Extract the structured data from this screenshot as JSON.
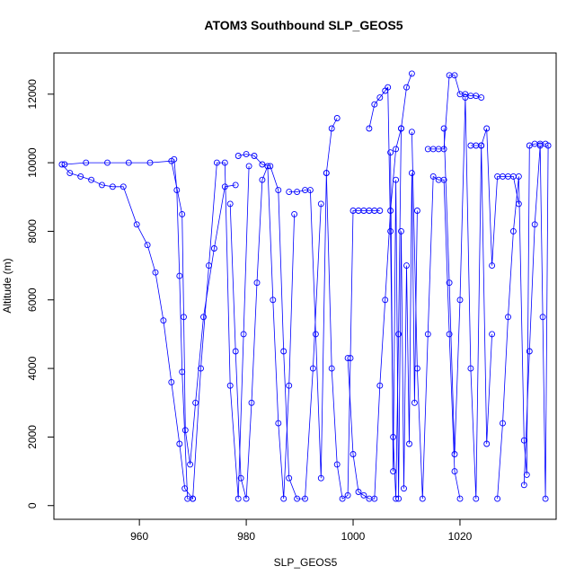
{
  "chart_data": {
    "type": "scatter",
    "title": "ATOM3 Southbound SLP_GEOS5",
    "xlabel": "SLP_GEOS5",
    "ylabel": "Altitude (m)",
    "xlim": [
      944,
      1038
    ],
    "ylim": [
      -400,
      13200
    ],
    "xticks": [
      960,
      980,
      1000,
      1020
    ],
    "yticks": [
      0,
      2000,
      4000,
      6000,
      8000,
      10000,
      12000
    ],
    "xtick_labels": [
      "960",
      "980",
      "1000",
      "1020"
    ],
    "ytick_labels": [
      "0",
      "2000",
      "4000",
      "6000",
      "8000",
      "10000",
      "12000"
    ],
    "grid": false,
    "marker": "open-circle",
    "color": "#0000ff",
    "series": [
      {
        "x": [
          945.5,
          947,
          949,
          951,
          953,
          955,
          957,
          959.5,
          961.5,
          963,
          964.5,
          966,
          967.5,
          968.5,
          970
        ],
        "y": [
          9950,
          9700,
          9600,
          9500,
          9350,
          9300,
          9300,
          8200,
          7600,
          6800,
          5400,
          3600,
          1800,
          500,
          200
        ]
      },
      {
        "x": [
          946,
          950,
          954,
          958,
          962,
          966,
          968,
          968.3,
          968.6,
          969.5,
          970.5,
          972,
          974,
          976,
          978
        ],
        "y": [
          9950,
          10000,
          10000,
          10000,
          10000,
          10050,
          8500,
          5500,
          2200,
          1200,
          3000,
          5500,
          7500,
          9300,
          9350
        ]
      },
      {
        "x": [
          966.5,
          967,
          967.5,
          968,
          969,
          970,
          971.5,
          973,
          974.5,
          976,
          977,
          978.5,
          979.5,
          980.5
        ],
        "y": [
          10100,
          9200,
          6700,
          3900,
          200,
          200,
          4000,
          7000,
          10000,
          10000,
          3500,
          200,
          5000,
          9900
        ]
      },
      {
        "x": [
          977,
          978,
          979,
          980,
          981,
          982,
          983,
          984,
          985,
          986,
          987,
          988,
          989
        ],
        "y": [
          8800,
          4500,
          800,
          200,
          3000,
          6500,
          9500,
          9900,
          6000,
          2400,
          200,
          3500,
          8500
        ]
      },
      {
        "x": [
          978.5,
          980,
          981.5,
          983,
          984.5,
          986,
          987,
          988,
          989.5,
          991,
          992.5,
          994
        ],
        "y": [
          10200,
          10250,
          10200,
          9950,
          9900,
          9200,
          4500,
          800,
          200,
          200,
          4000,
          8800
        ]
      },
      {
        "x": [
          988,
          989.5,
          991,
          992,
          993,
          994,
          995,
          996,
          997
        ],
        "y": [
          9150,
          9150,
          9200,
          9200,
          5000,
          800,
          9700,
          11000,
          11300
        ]
      },
      {
        "x": [
          995,
          996,
          997,
          998,
          999,
          999.5,
          1000,
          1001,
          1002,
          1003,
          1004,
          1005
        ],
        "y": [
          9700,
          4000,
          1200,
          200,
          300,
          4300,
          8600,
          8600,
          8600,
          8600,
          8600,
          8600
        ]
      },
      {
        "x": [
          999,
          1000,
          1001,
          1002,
          1003,
          1004,
          1005,
          1006,
          1007,
          1008,
          1009,
          1010,
          1011
        ],
        "y": [
          4300,
          1500,
          400,
          300,
          200,
          200,
          3500,
          6000,
          8600,
          10400,
          11000,
          12200,
          12600
        ]
      },
      {
        "x": [
          1003,
          1004,
          1005,
          1006,
          1006.5,
          1007,
          1007.5,
          1008,
          1008.5,
          1009
        ],
        "y": [
          11000,
          11700,
          11900,
          12100,
          12200,
          8000,
          2000,
          200,
          5000,
          11000
        ]
      },
      {
        "x": [
          1007,
          1007.5,
          1008,
          1008.5,
          1009,
          1009.5,
          1010,
          1010.5,
          1011,
          1011.5,
          1012
        ],
        "y": [
          10300,
          1000,
          9500,
          200,
          8000,
          500,
          7000,
          1800,
          9700,
          3000,
          8600
        ]
      },
      {
        "x": [
          1011,
          1012,
          1013,
          1014,
          1015,
          1016,
          1017,
          1018,
          1019,
          1020
        ],
        "y": [
          10900,
          4000,
          200,
          5000,
          9600,
          9500,
          9500,
          5000,
          1000,
          200
        ]
      },
      {
        "x": [
          1014,
          1015,
          1016,
          1017,
          1018,
          1019,
          1020,
          1021,
          1022,
          1023,
          1024
        ],
        "y": [
          10400,
          10400,
          10400,
          10400,
          12550,
          12550,
          12000,
          12000,
          11950,
          11950,
          11900
        ]
      },
      {
        "x": [
          1017,
          1018,
          1019,
          1020,
          1021,
          1022,
          1023,
          1024,
          1025,
          1026
        ],
        "y": [
          11000,
          6500,
          1500,
          6000,
          11900,
          4000,
          200,
          10500,
          1800,
          5000
        ]
      },
      {
        "x": [
          1022,
          1023,
          1024,
          1025,
          1026,
          1027,
          1028,
          1029,
          1030,
          1031
        ],
        "y": [
          10500,
          10500,
          10500,
          11000,
          7000,
          9600,
          9600,
          9600,
          9600,
          8800
        ]
      },
      {
        "x": [
          1027,
          1028,
          1029,
          1030,
          1031,
          1032,
          1032.5,
          1033,
          1034,
          1035,
          1036
        ],
        "y": [
          200,
          2400,
          5500,
          8000,
          9600,
          1900,
          900,
          10500,
          10550,
          10550,
          10550
        ]
      },
      {
        "x": [
          1032,
          1033,
          1034,
          1035,
          1035.5,
          1036,
          1036.5
        ],
        "y": [
          600,
          4500,
          8200,
          10500,
          5500,
          200,
          10500
        ]
      }
    ]
  }
}
